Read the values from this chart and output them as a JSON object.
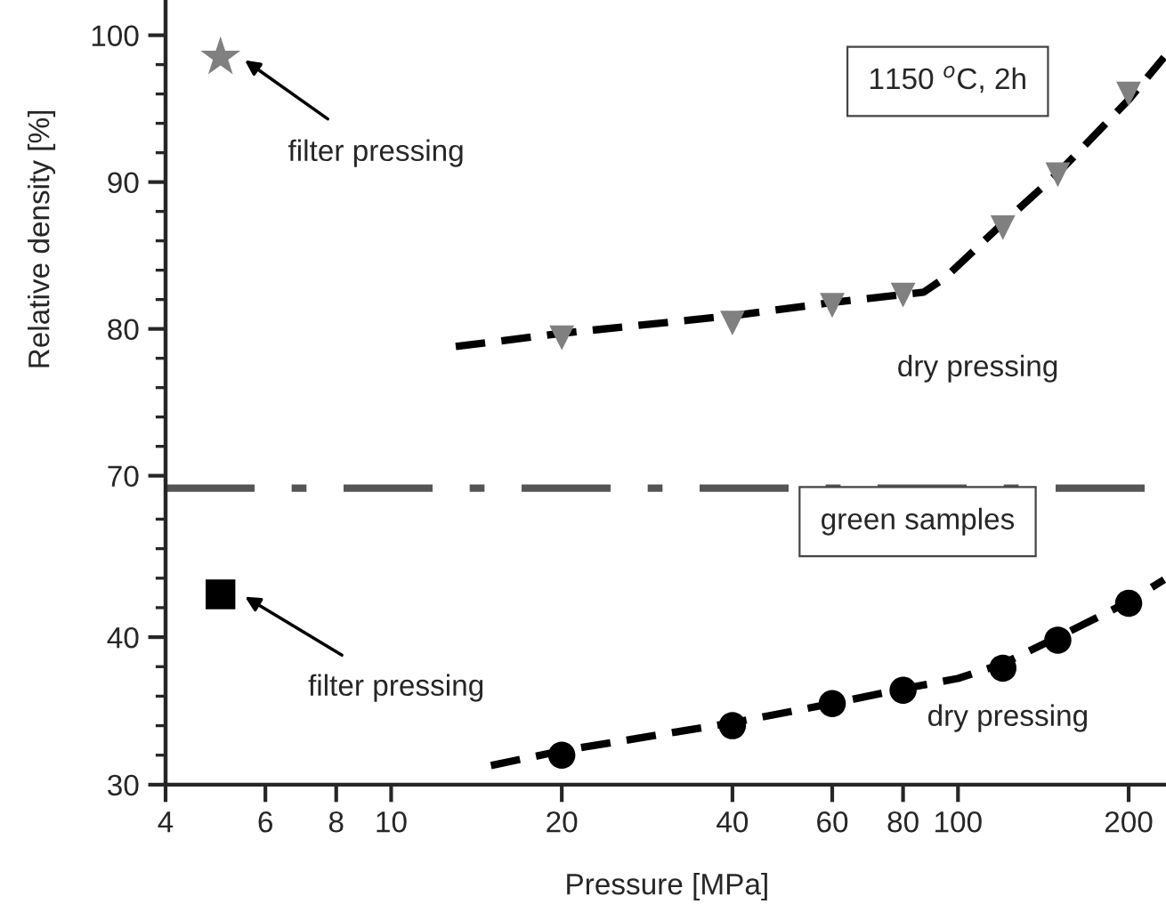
{
  "chart_data": [
    {
      "type": "scatter",
      "ylabel": "Relative density [%]",
      "xlim": [
        4,
        235
      ],
      "ylim": [
        69.8,
        102.4
      ],
      "log": "x",
      "tick_labels": "y",
      "yticks": [
        70,
        {
          "value": 72,
          "label": null
        },
        {
          "value": 74,
          "label": null
        },
        {
          "value": 76,
          "label": null
        },
        {
          "value": 78,
          "label": null
        },
        80,
        {
          "value": 82,
          "label": null
        },
        {
          "value": 84,
          "label": null
        },
        {
          "value": 86,
          "label": null
        },
        {
          "value": 88,
          "label": null
        },
        90,
        {
          "value": 92,
          "label": null
        },
        {
          "value": 94,
          "label": null
        },
        {
          "value": 96,
          "label": null
        },
        {
          "value": 98,
          "label": null
        },
        100
      ],
      "series": [
        {
          "type": "line",
          "line_style": "dashed",
          "marker": "none",
          "color": "#000000",
          "x": [
            13,
            20,
            40,
            60,
            87,
            95,
            120,
            150,
            200,
            231
          ],
          "values": [
            78.8,
            79.7,
            80.9,
            81.8,
            82.5,
            83.5,
            87.2,
            90.6,
            95.6,
            98.5
          ]
        },
        {
          "marker": "triangle",
          "color": "#808080",
          "x": [
            20,
            40,
            60,
            80,
            120,
            150,
            200
          ],
          "values": [
            79.4,
            80.4,
            81.6,
            82.3,
            86.9,
            90.5,
            96.0
          ]
        },
        {
          "marker": "star",
          "color": "#808080",
          "x": [
            5
          ],
          "values": [
            98.5
          ]
        }
      ],
      "annotations": [
        "1150 $^{o}$C, 2h",
        "filter pressing",
        "dry pressing"
      ]
    },
    {
      "type": "scatter",
      "xlabel": "Pressure [MPa]",
      "xlim": [
        4,
        235
      ],
      "ylim": [
        30,
        50.5
      ],
      "log": "x",
      "xticks": [
        4,
        6,
        8,
        10,
        20,
        40,
        60,
        80,
        100,
        200
      ],
      "yticks": [
        30,
        {
          "value": 32,
          "label": null
        },
        {
          "value": 34,
          "label": null
        },
        {
          "value": 36,
          "label": null
        },
        {
          "value": 38,
          "label": null
        },
        40,
        {
          "value": 42,
          "label": null
        },
        {
          "value": 44,
          "label": null
        },
        {
          "value": 46,
          "label": null
        },
        {
          "value": 48,
          "label": null
        }
      ],
      "ref_lines": [
        {
          "axis": "y",
          "value": 50.1,
          "color": "#555555",
          "line_style": "dashdot"
        }
      ],
      "series": [
        {
          "type": "line",
          "line_style": "dashed",
          "marker": "none",
          "color": "#000000",
          "x": [
            15,
            20,
            40,
            60,
            80,
            100,
            120,
            150,
            200,
            231
          ],
          "values": [
            31.3,
            32.3,
            34.2,
            35.5,
            36.5,
            37.2,
            38.2,
            40.0,
            42.4,
            43.9
          ]
        },
        {
          "marker": "circle",
          "color": "#000000",
          "x": [
            20,
            40,
            60,
            80,
            120,
            150,
            200
          ],
          "values": [
            32.0,
            34.0,
            35.5,
            36.4,
            37.9,
            39.8,
            42.3
          ]
        },
        {
          "marker": "square",
          "color": "#000000",
          "x": [
            5
          ],
          "values": [
            42.9
          ]
        }
      ],
      "annotations": [
        "green samples",
        "filter pressing",
        "dry pressing"
      ]
    }
  ]
}
